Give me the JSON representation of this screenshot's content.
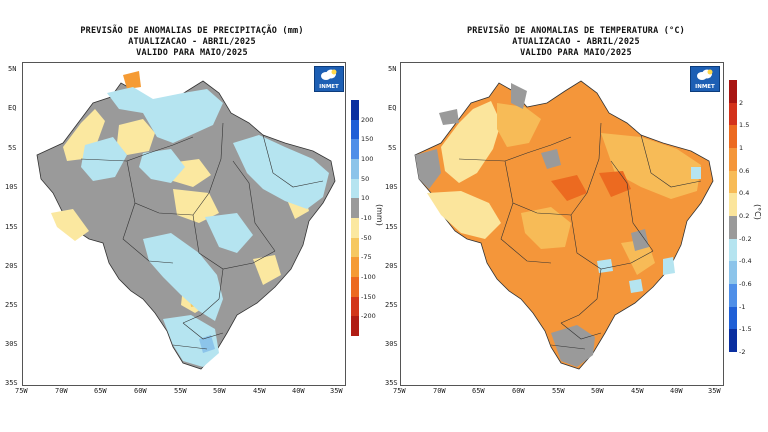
{
  "precip_panel": {
    "title_line1": "PREVISÃO DE ANOMALIAS DE PRECIPITAÇÃO (mm)",
    "title_line2": "ATUALIZACAO - ABRIL/2025",
    "title_line3": "VALIDO PARA MAIO/2025",
    "logo_text": "INMET",
    "colorbar_unit": "(mm)",
    "colorbar_labels": [
      "200",
      "150",
      "100",
      "50",
      "10",
      "-10",
      "-50",
      "-75",
      "-100",
      "-150",
      "-200"
    ],
    "colorbar_colors": [
      "#0a2fa0",
      "#1f5fd6",
      "#4f8fe8",
      "#8cc4ea",
      "#b5e4f0",
      "#9a9a9a",
      "#fbe8a0",
      "#f6c860",
      "#f59b34",
      "#ec6a20",
      "#d2361a",
      "#b01c14"
    ]
  },
  "temp_panel": {
    "title_line1": "PREVISÃO DE ANOMALIAS DE TEMPERATURA (°C)",
    "title_line2": "ATUALIZACAO - ABRIL/2025",
    "title_line3": "VALIDO PARA MAIO/2025",
    "logo_text": "INMET",
    "colorbar_unit": "(°C)",
    "colorbar_labels": [
      "2",
      "1.5",
      "1",
      "0.6",
      "0.4",
      "0.2",
      "-0.2",
      "-0.4",
      "-0.6",
      "-1",
      "-1.5",
      "-2"
    ],
    "colorbar_colors": [
      "#a81512",
      "#d3321b",
      "#ec6a20",
      "#f4963a",
      "#f7bb57",
      "#fbe59c",
      "#9a9a9a",
      "#b5e4f0",
      "#8cc4ea",
      "#4f8fe8",
      "#1f5fd6",
      "#0a2fa0"
    ]
  },
  "axes": {
    "lat_labels": [
      "5N",
      "EQ",
      "5S",
      "10S",
      "15S",
      "20S",
      "25S",
      "30S",
      "35S"
    ],
    "lon_labels": [
      "75W",
      "70W",
      "65W",
      "60W",
      "55W",
      "50W",
      "45W",
      "40W",
      "35W"
    ]
  }
}
